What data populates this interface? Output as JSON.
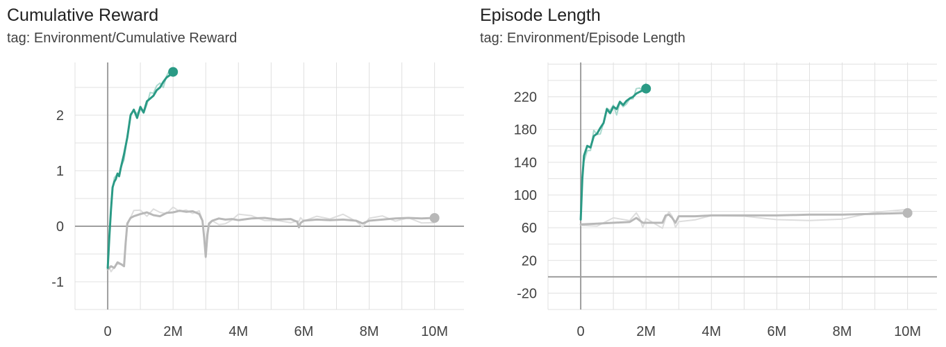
{
  "colors": {
    "run_a": "#2a9a85",
    "run_a_raw": "#a9d9ce",
    "run_b": "#b8b8b8",
    "run_b_raw": "#dddddd",
    "grid": "#e0e0e0",
    "axis": "#9e9e9e",
    "tick_text": "#424242"
  },
  "chart_data": [
    {
      "type": "line",
      "title": "Cumulative Reward",
      "subtitle": "tag: Environment/Cumulative Reward",
      "xlabel": "",
      "ylabel": "",
      "xlim": [
        -1000000,
        10900000
      ],
      "ylim": [
        -1.5,
        2.95
      ],
      "x_ticks": [
        0,
        2000000,
        4000000,
        6000000,
        8000000,
        10000000
      ],
      "x_tick_labels": [
        "0",
        "2M",
        "4M",
        "6M",
        "8M",
        "10M"
      ],
      "y_ticks": [
        -1,
        0,
        1,
        2
      ],
      "y_tick_labels": [
        "-1",
        "0",
        "1",
        "2"
      ],
      "grid": true,
      "series": [
        {
          "color_key": "run_b",
          "x": [
            0,
            100000,
            200000,
            300000,
            400000,
            500000,
            550000,
            600000,
            700000,
            800000,
            1000000,
            1200000,
            1400000,
            1600000,
            1800000,
            2000000,
            2200000,
            2400000,
            2600000,
            2800000,
            2900000,
            2950000,
            3000000,
            3050000,
            3100000,
            3200000,
            3400000,
            3600000,
            3800000,
            4000000,
            4400000,
            4800000,
            5200000,
            5600000,
            5800000,
            5850000,
            5900000,
            6000000,
            6400000,
            6800000,
            7200000,
            7600000,
            7800000,
            8000000,
            8400000,
            8800000,
            9200000,
            9600000,
            10000000
          ],
          "y": [
            -0.78,
            -0.72,
            -0.75,
            -0.65,
            -0.68,
            -0.72,
            -0.3,
            0.05,
            0.15,
            0.18,
            0.22,
            0.25,
            0.2,
            0.18,
            0.24,
            0.25,
            0.28,
            0.26,
            0.27,
            0.22,
            0.1,
            -0.2,
            -0.55,
            -0.15,
            0.05,
            0.1,
            0.14,
            0.12,
            0.13,
            0.11,
            0.14,
            0.15,
            0.12,
            0.13,
            0.08,
            -0.02,
            0.06,
            0.1,
            0.12,
            0.11,
            0.12,
            0.1,
            0.05,
            0.1,
            0.12,
            0.14,
            0.15,
            0.14,
            0.15
          ]
        },
        {
          "color_key": "run_a",
          "x": [
            0,
            50000,
            100000,
            150000,
            200000,
            250000,
            300000,
            350000,
            400000,
            500000,
            600000,
            700000,
            800000,
            900000,
            1000000,
            1100000,
            1200000,
            1300000,
            1400000,
            1500000,
            1600000,
            1700000,
            1800000,
            1900000,
            2000000
          ],
          "y": [
            -0.75,
            -0.2,
            0.3,
            0.7,
            0.8,
            0.85,
            0.95,
            0.9,
            1.05,
            1.3,
            1.6,
            2.0,
            2.1,
            1.95,
            2.15,
            2.05,
            2.25,
            2.3,
            2.35,
            2.45,
            2.5,
            2.6,
            2.68,
            2.72,
            2.78
          ]
        }
      ]
    },
    {
      "type": "line",
      "title": "Episode Length",
      "subtitle": "tag: Environment/Episode Length",
      "xlabel": "",
      "ylabel": "",
      "xlim": [
        -1000000,
        10900000
      ],
      "ylim": [
        -40,
        262
      ],
      "x_ticks": [
        0,
        2000000,
        4000000,
        6000000,
        8000000,
        10000000
      ],
      "x_tick_labels": [
        "0",
        "2M",
        "4M",
        "6M",
        "8M",
        "10M"
      ],
      "y_ticks": [
        -20,
        20,
        60,
        100,
        140,
        180,
        220
      ],
      "y_tick_labels": [
        "-20",
        "20",
        "60",
        "100",
        "140",
        "180",
        "220"
      ],
      "grid": true,
      "series": [
        {
          "color_key": "run_b",
          "x": [
            0,
            500000,
            1000000,
            1500000,
            1700000,
            1800000,
            1900000,
            2000000,
            2500000,
            2600000,
            2700000,
            2800000,
            2900000,
            3000000,
            3500000,
            4000000,
            5000000,
            6000000,
            7000000,
            8000000,
            9000000,
            10000000
          ],
          "y": [
            64,
            65,
            66,
            67,
            72,
            69,
            66,
            66,
            66,
            75,
            76,
            72,
            66,
            74,
            74,
            75,
            75,
            75,
            76,
            76,
            77,
            78
          ]
        },
        {
          "color_key": "run_a",
          "x": [
            0,
            50000,
            100000,
            200000,
            300000,
            400000,
            500000,
            600000,
            700000,
            800000,
            900000,
            1000000,
            1100000,
            1200000,
            1300000,
            1400000,
            1500000,
            1600000,
            1700000,
            1800000,
            1900000,
            2000000
          ],
          "y": [
            70,
            120,
            148,
            160,
            158,
            172,
            175,
            182,
            188,
            205,
            200,
            208,
            205,
            214,
            210,
            215,
            218,
            220,
            224,
            226,
            228,
            230
          ]
        }
      ]
    }
  ]
}
